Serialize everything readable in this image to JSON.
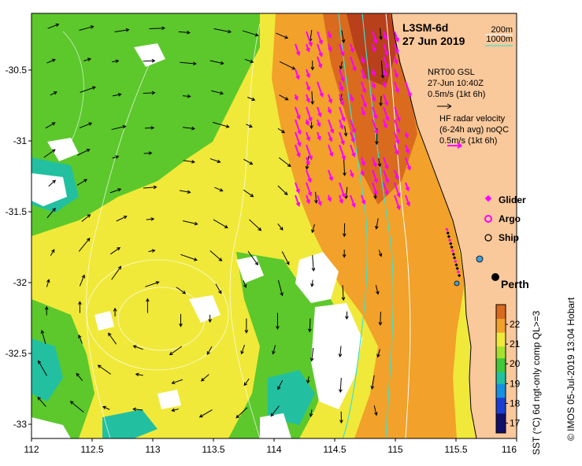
{
  "title": "L3SM-6d",
  "date": "27 Jun 2019",
  "scale_legend": {
    "item1": "200m",
    "item2": "1000m",
    "color1": "#ffffff",
    "color2": "#40e0d0"
  },
  "gsl": {
    "line1": "NRT00 GSL",
    "line2": "27-Jun 10:40Z",
    "line3": "0.5m/s (1kt 6h)"
  },
  "hf": {
    "line1": "HF radar velocity",
    "line2": "(6-24h avg) noQC",
    "line3": "0.5m/s (1kt 6h)",
    "color": "#ff00ff"
  },
  "legend": {
    "glider": "Glider",
    "argo": "Argo",
    "ship": "Ship",
    "glider_color": "#ff00ff",
    "argo_color": "#ff00ff"
  },
  "city": "Perth",
  "colorbar": {
    "label": "SST (°C) 6d ngt-only comp QL>=3",
    "ticks": [
      "17",
      "18",
      "19",
      "20",
      "21",
      "22"
    ],
    "min": 16.5,
    "max": 23
  },
  "credit": "© IMOS 05-Jul-2019 13:04 Hobart",
  "x_axis": {
    "ticks": [
      "112",
      "112.5",
      "113",
      "113.5",
      "114",
      "114.5",
      "115",
      "115.5",
      "116"
    ],
    "values": [
      112,
      112.5,
      113,
      113.5,
      114,
      114.5,
      115,
      115.5,
      116
    ],
    "min": 112,
    "max": 116
  },
  "y_axis": {
    "ticks": [
      "-30.5",
      "-31",
      "-31.5",
      "-32",
      "-32.5",
      "-33"
    ],
    "values": [
      -30.5,
      -31,
      -31.5,
      -32,
      -32.5,
      -33
    ],
    "min": -33.1,
    "max": -30.1
  },
  "land_color": "#f9c89b"
}
